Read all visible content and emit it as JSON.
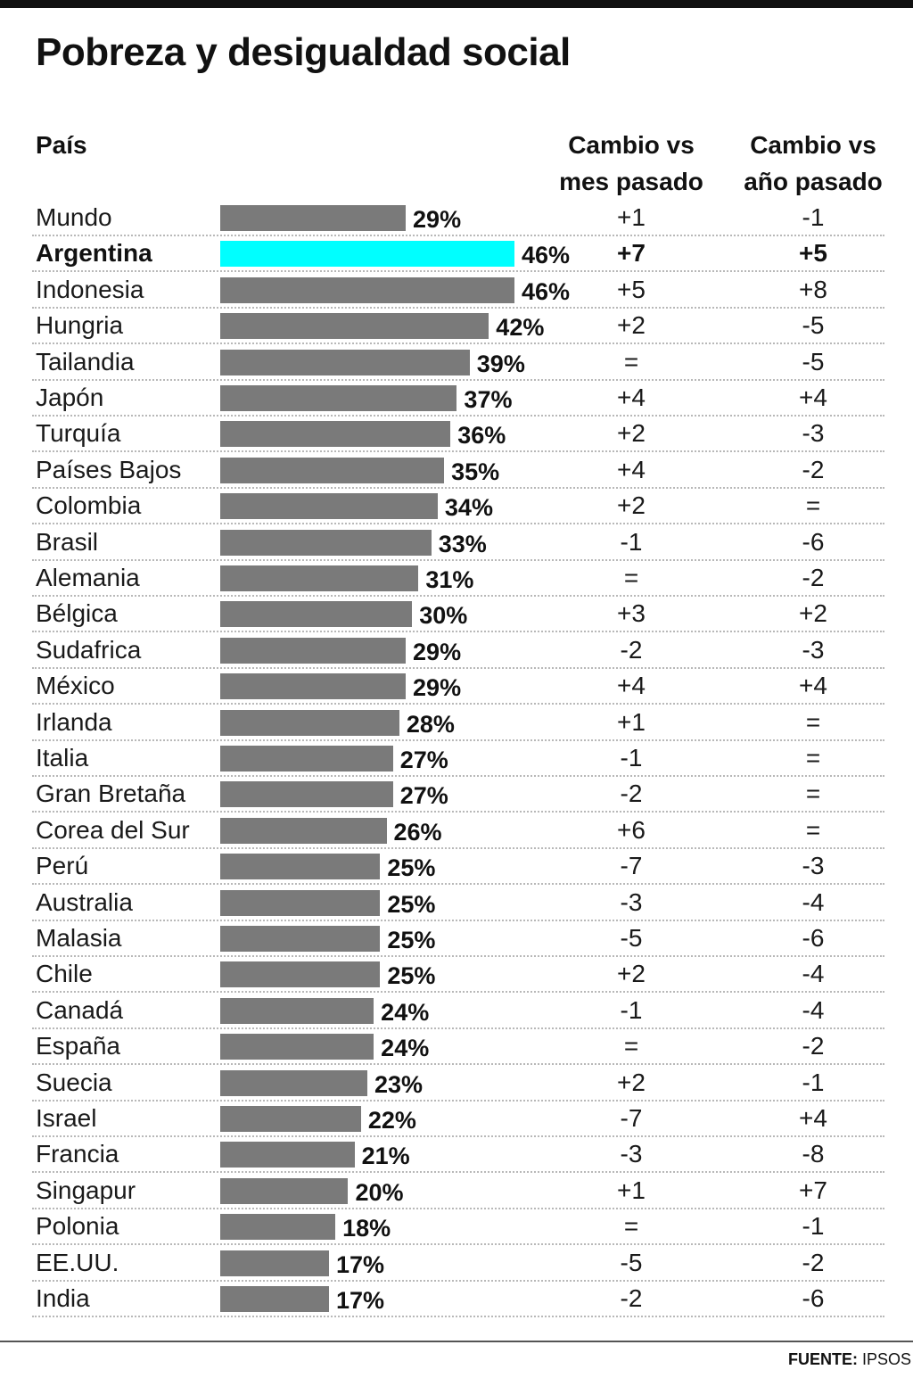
{
  "header": {
    "title": "Pobreza y desigualdad social"
  },
  "columns": {
    "pais": "País",
    "mes": [
      "Cambio vs",
      "mes pasado"
    ],
    "anio": [
      "Cambio vs",
      "año pasado"
    ]
  },
  "colors": {
    "bar": "#7a7a7a",
    "highlight": "#00ffff"
  },
  "chart_data": {
    "type": "bar",
    "orientation": "horizontal",
    "title": "Pobreza y desigualdad social",
    "value_unit": "%",
    "highlight": "Argentina",
    "xlim": [
      0,
      46
    ],
    "categories": [
      "Mundo",
      "Argentina",
      "Indonesia",
      "Hungria",
      "Tailandia",
      "Japón",
      "Turquía",
      "Países Bajos",
      "Colombia",
      "Brasil",
      "Alemania",
      "Bélgica",
      "Sudafrica",
      "México",
      "Irlanda",
      "Italia",
      "Gran Bretaña",
      "Corea del Sur",
      "Perú",
      "Australia",
      "Malasia",
      "Chile",
      "Canadá",
      "España",
      "Suecia",
      "Israel",
      "Francia",
      "Singapur",
      "Polonia",
      "EE.UU.",
      "India"
    ],
    "values": [
      29,
      46,
      46,
      42,
      39,
      37,
      36,
      35,
      34,
      33,
      31,
      30,
      29,
      29,
      28,
      27,
      27,
      26,
      25,
      25,
      25,
      25,
      24,
      24,
      23,
      22,
      21,
      20,
      18,
      17,
      17
    ],
    "cambio_mes": [
      "+1",
      "+7",
      "+5",
      "+2",
      "=",
      "+4",
      "+2",
      "+4",
      "+2",
      "-1",
      "=",
      "+3",
      "-2",
      "+4",
      "+1",
      "-1",
      "-2",
      "+6",
      "-7",
      "-3",
      "-5",
      "+2",
      "-1",
      "=",
      "+2",
      "-7",
      "-3",
      "+1",
      "=",
      "-5",
      "-2"
    ],
    "cambio_anio": [
      "-1",
      "+5",
      "+8",
      "-5",
      "-5",
      "+4",
      "-3",
      "-2",
      "=",
      "-6",
      "-2",
      "+2",
      "-3",
      "+4",
      "=",
      "=",
      "=",
      "=",
      "-3",
      "-4",
      "-6",
      "-4",
      "-4",
      "-2",
      "-1",
      "+4",
      "-8",
      "+7",
      "-1",
      "-2",
      "-6"
    ]
  },
  "footer": {
    "source_label": "FUENTE:",
    "source_value": "IPSOS"
  }
}
